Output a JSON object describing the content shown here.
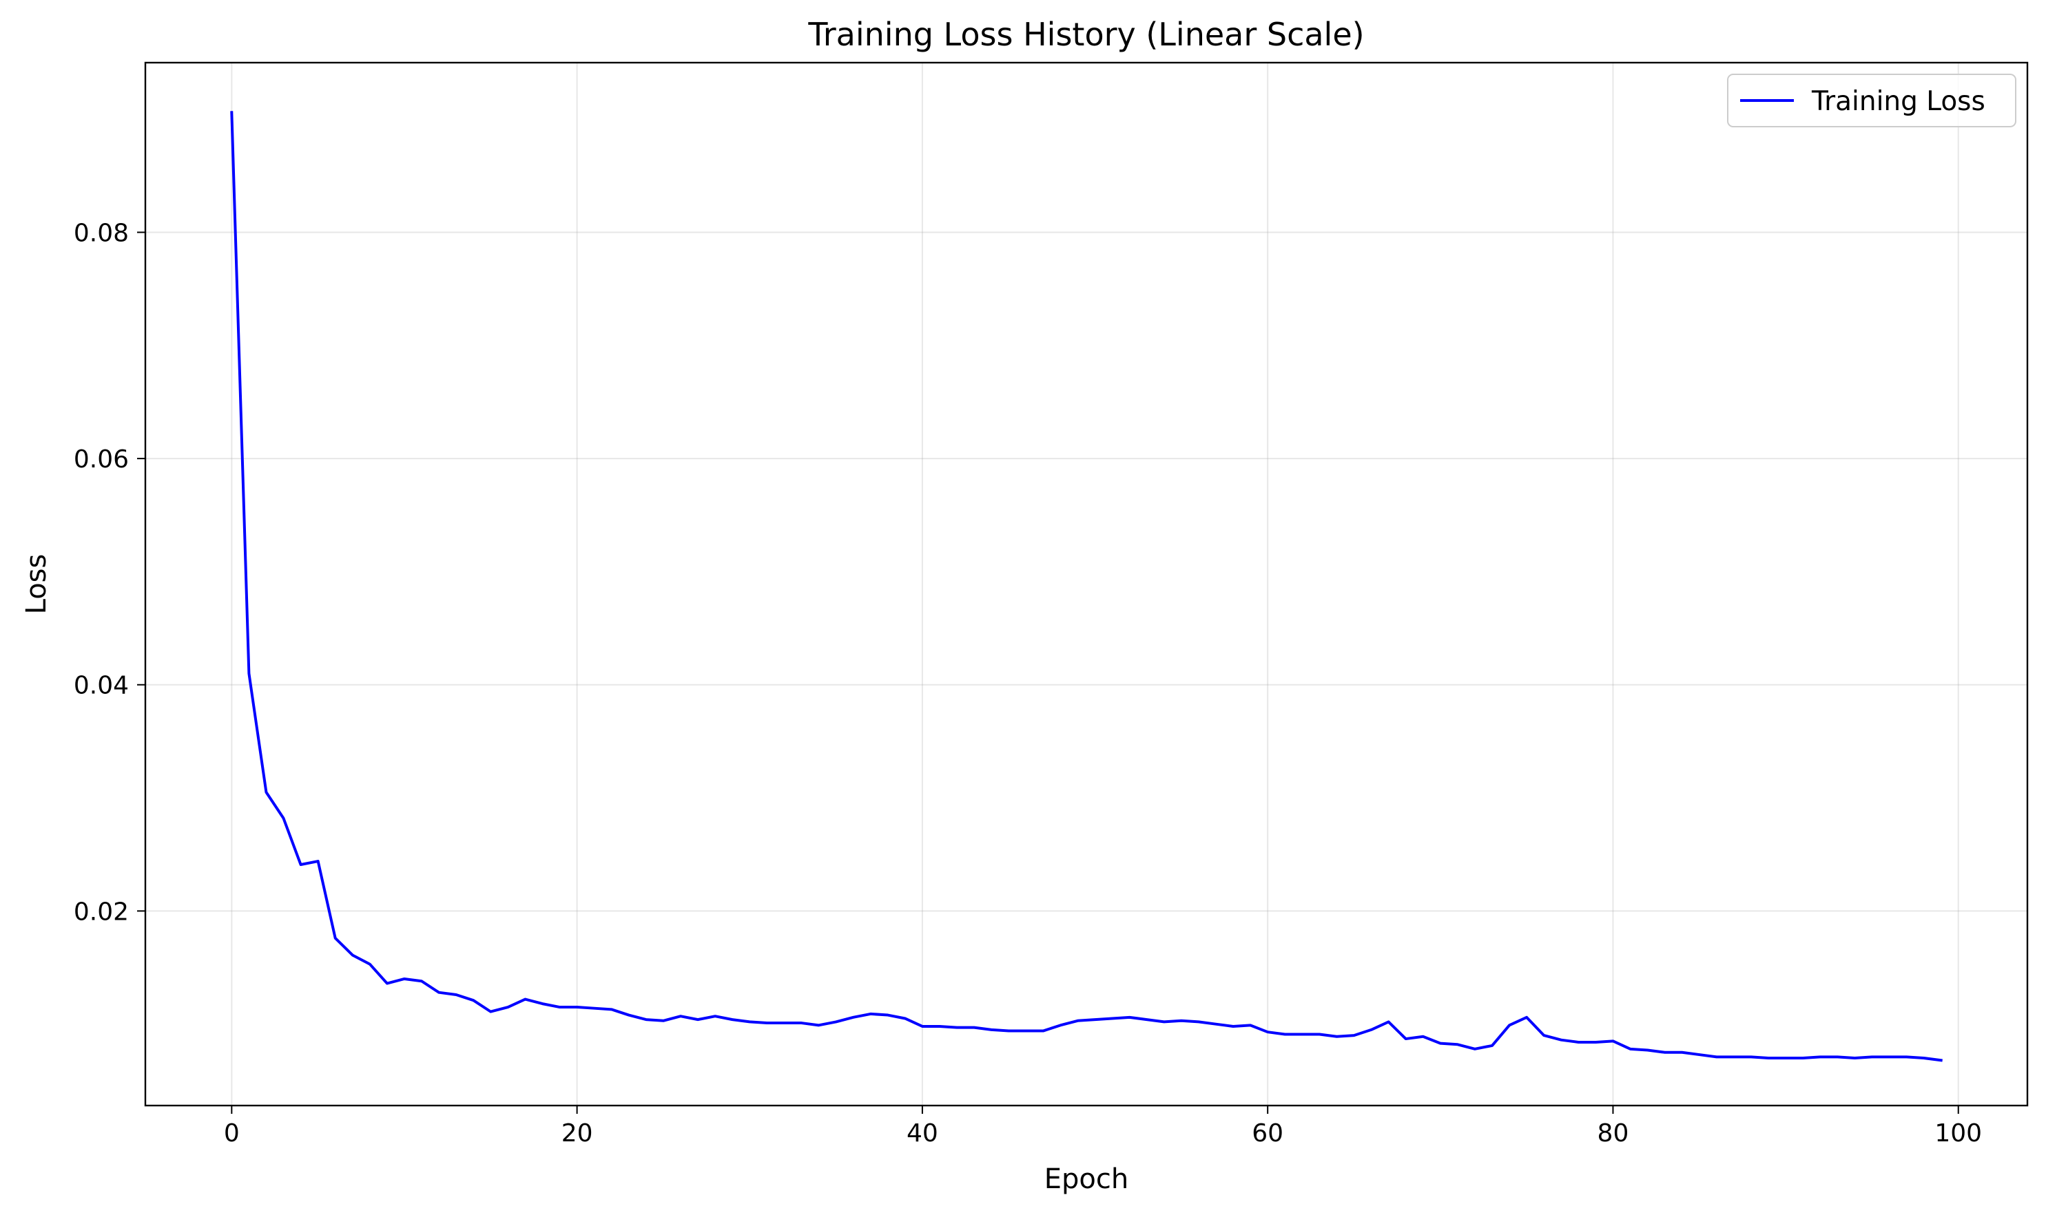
{
  "chart_data": {
    "type": "line",
    "title": "Training Loss History (Linear Scale)",
    "xlabel": "Epoch",
    "ylabel": "Loss",
    "xlim": [
      -5,
      104
    ],
    "ylim": [
      0.0028,
      0.095
    ],
    "xticks": [
      0,
      20,
      40,
      60,
      80,
      100
    ],
    "yticks": [
      0.02,
      0.04,
      0.06,
      0.08
    ],
    "xtick_labels": [
      "0",
      "20",
      "40",
      "60",
      "80",
      "100"
    ],
    "ytick_labels": [
      "0.02",
      "0.04",
      "0.06",
      "0.08"
    ],
    "grid": true,
    "legend_position": "top-right",
    "series": [
      {
        "name": "Training Loss",
        "color": "#0000ff",
        "x": [
          0,
          1,
          2,
          3,
          4,
          5,
          6,
          7,
          8,
          9,
          10,
          11,
          12,
          13,
          14,
          15,
          16,
          17,
          18,
          19,
          20,
          21,
          22,
          23,
          24,
          25,
          26,
          27,
          28,
          29,
          30,
          31,
          32,
          33,
          34,
          35,
          36,
          37,
          38,
          39,
          40,
          41,
          42,
          43,
          44,
          45,
          46,
          47,
          48,
          49,
          50,
          51,
          52,
          53,
          54,
          55,
          56,
          57,
          58,
          59,
          60,
          61,
          62,
          63,
          64,
          65,
          66,
          67,
          68,
          69,
          70,
          71,
          72,
          73,
          74,
          75,
          76,
          77,
          78,
          79,
          80,
          81,
          82,
          83,
          84,
          85,
          86,
          87,
          88,
          89,
          90,
          91,
          92,
          93,
          94,
          95,
          96,
          97,
          98,
          99
        ],
        "y": [
          0.0906,
          0.041,
          0.0305,
          0.0282,
          0.0241,
          0.0244,
          0.0176,
          0.0161,
          0.0153,
          0.0136,
          0.014,
          0.0138,
          0.0128,
          0.0126,
          0.0121,
          0.0111,
          0.0115,
          0.0122,
          0.0118,
          0.0115,
          0.0115,
          0.0114,
          0.0113,
          0.0108,
          0.0104,
          0.0103,
          0.0107,
          0.0104,
          0.0107,
          0.0104,
          0.0102,
          0.0101,
          0.0101,
          0.0101,
          0.0099,
          0.0102,
          0.0106,
          0.0109,
          0.0108,
          0.0105,
          0.0098,
          0.0098,
          0.0097,
          0.0097,
          0.0095,
          0.0094,
          0.0094,
          0.0094,
          0.0099,
          0.0103,
          0.0104,
          0.0105,
          0.0106,
          0.0104,
          0.0102,
          0.0103,
          0.0102,
          0.01,
          0.0098,
          0.0099,
          0.0093,
          0.0091,
          0.0091,
          0.0091,
          0.0089,
          0.009,
          0.0095,
          0.0102,
          0.0087,
          0.0089,
          0.0083,
          0.0082,
          0.0078,
          0.0081,
          0.0099,
          0.0106,
          0.009,
          0.0086,
          0.0084,
          0.0084,
          0.0085,
          0.0078,
          0.0077,
          0.0075,
          0.0075,
          0.0073,
          0.0071,
          0.0071,
          0.0071,
          0.007,
          0.007,
          0.007,
          0.0071,
          0.0071,
          0.007,
          0.0071,
          0.0071,
          0.0071,
          0.007,
          0.0068
        ]
      }
    ]
  }
}
